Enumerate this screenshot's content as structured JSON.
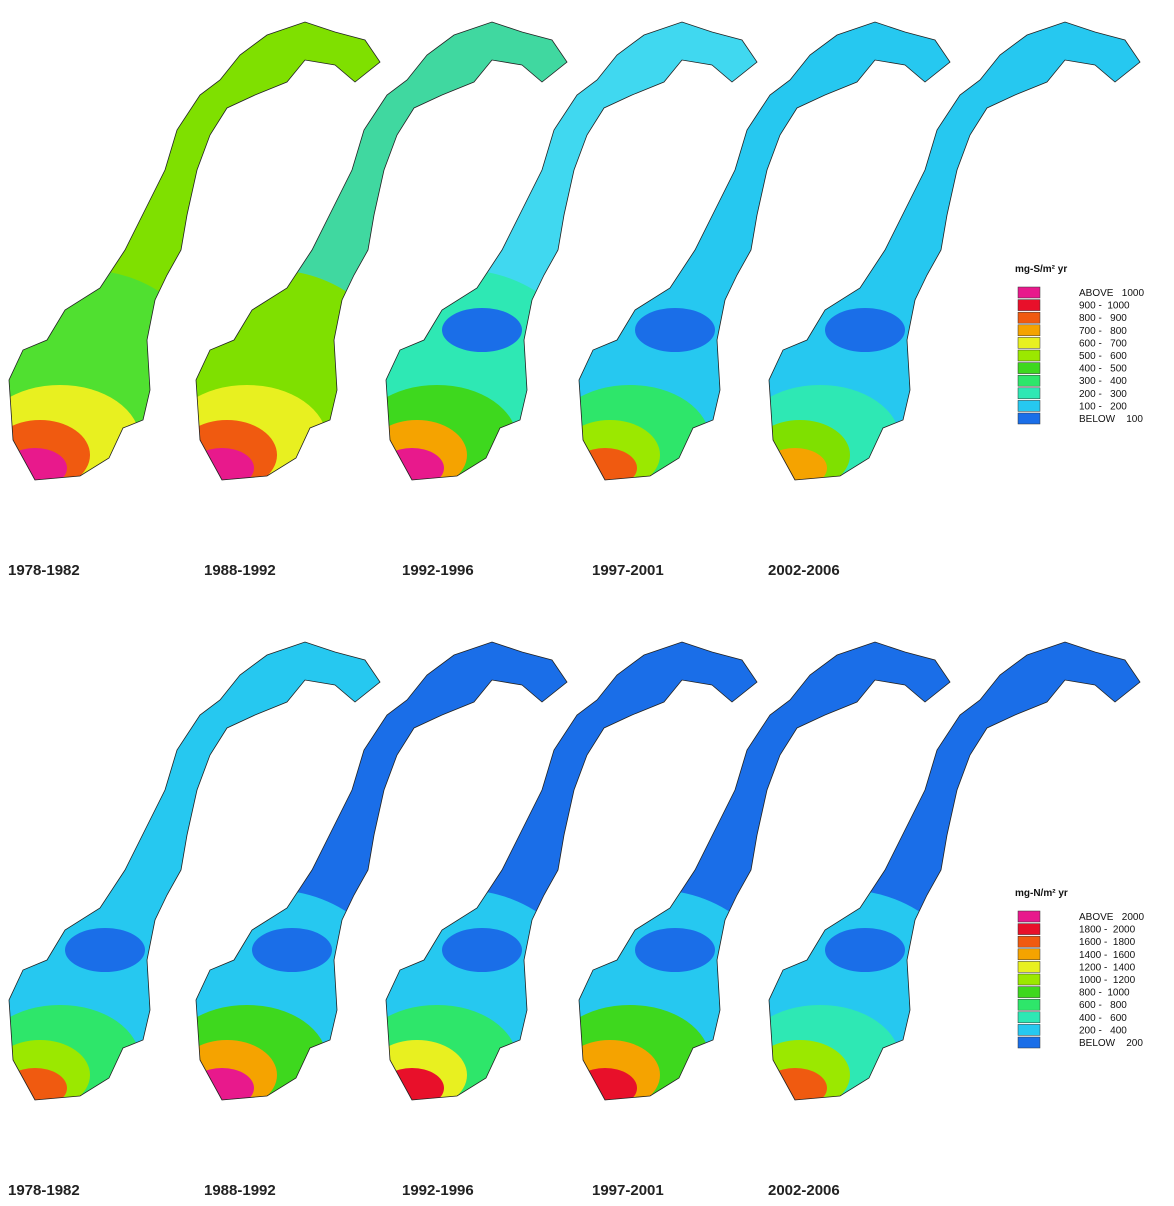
{
  "panels": [
    {
      "periods": [
        "1978-1982",
        "1988-1992",
        "1992-1996",
        "1997-2001",
        "2002-2006"
      ],
      "legend": {
        "title": "mg-S/m² yr",
        "items": [
          {
            "label": "ABOVE   1000",
            "color": "#e8198c"
          },
          {
            "label": "900 -  1000",
            "color": "#e8102a"
          },
          {
            "label": "800 -   900",
            "color": "#f05a10"
          },
          {
            "label": "700 -   800",
            "color": "#f5a300"
          },
          {
            "label": "600 -   700",
            "color": "#e8f020"
          },
          {
            "label": "500 -   600",
            "color": "#9be800"
          },
          {
            "label": "400 -   500",
            "color": "#3ed81e"
          },
          {
            "label": "300 -   400",
            "color": "#2ee66a"
          },
          {
            "label": "200 -   300",
            "color": "#2ee8b4"
          },
          {
            "label": "100 -   200",
            "color": "#26c8f0"
          },
          {
            "label": "BELOW    100",
            "color": "#1a6ee8"
          }
        ]
      }
    },
    {
      "periods": [
        "1978-1982",
        "1988-1992",
        "1992-1996",
        "1997-2001",
        "2002-2006"
      ],
      "legend": {
        "title": "mg-N/m² yr",
        "items": [
          {
            "label": "ABOVE   2000",
            "color": "#e8198c"
          },
          {
            "label": "1800 -  2000",
            "color": "#e8102a"
          },
          {
            "label": "1600 -  1800",
            "color": "#f05a10"
          },
          {
            "label": "1400 -  1600",
            "color": "#f5a300"
          },
          {
            "label": "1200 -  1400",
            "color": "#e8f020"
          },
          {
            "label": "1000 -  1200",
            "color": "#9be800"
          },
          {
            "label": "800 -  1000",
            "color": "#3ed81e"
          },
          {
            "label": "600 -   800",
            "color": "#2ee66a"
          },
          {
            "label": "400 -   600",
            "color": "#2ee8b4"
          },
          {
            "label": "200 -   400",
            "color": "#26c8f0"
          },
          {
            "label": "BELOW    200",
            "color": "#1a6ee8"
          }
        ]
      }
    }
  ]
}
